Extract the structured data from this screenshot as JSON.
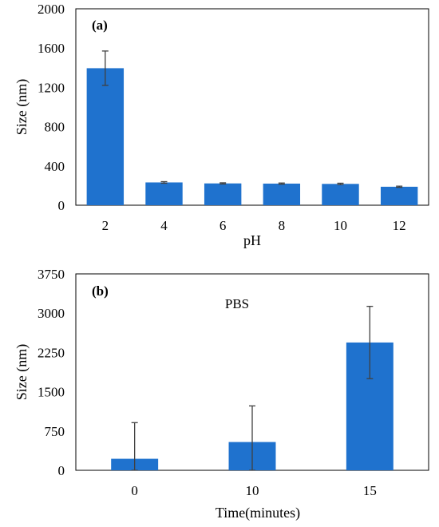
{
  "bar_color": "#1F72CE",
  "error_color": "#404040",
  "chart_data": [
    {
      "type": "bar",
      "panel_label": "(a)",
      "categories": [
        "2",
        "4",
        "6",
        "8",
        "10",
        "12"
      ],
      "values": [
        1395,
        232,
        222,
        220,
        217,
        188
      ],
      "errors": [
        175,
        8,
        6,
        6,
        7,
        6
      ],
      "xlabel": "pH",
      "ylabel": "Size (nm)",
      "ylim": [
        0,
        2000
      ],
      "yticks": [
        "0",
        "400",
        "800",
        "1200",
        "1600",
        "2000"
      ],
      "grid": false,
      "legend": "none"
    },
    {
      "type": "bar",
      "panel_label": "(b)",
      "annotation": "PBS",
      "categories": [
        "0",
        "10",
        "15"
      ],
      "values": [
        220,
        540,
        2440
      ],
      "errors": [
        690,
        690,
        690
      ],
      "xlabel": "Time(minutes)",
      "ylabel": "Size (nm)",
      "ylim": [
        0,
        3750
      ],
      "yticks": [
        "0",
        "750",
        "1500",
        "2250",
        "3000",
        "3750"
      ],
      "grid": false,
      "legend": "none"
    }
  ]
}
